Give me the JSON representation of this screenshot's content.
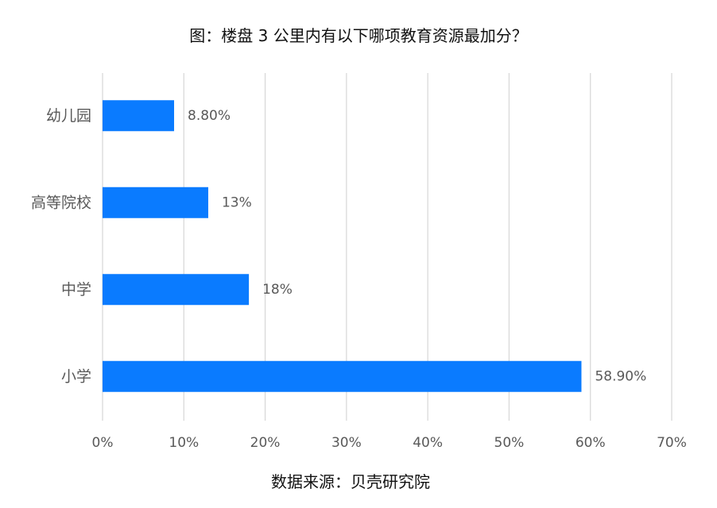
{
  "colors": {
    "bar": "#0a7bff",
    "grid": "#d9d9d9",
    "text": "#595959",
    "title": "#111111"
  },
  "chart_data": {
    "type": "bar",
    "orientation": "horizontal",
    "title": "图：楼盘 3 公里内有以下哪项教育资源最加分？",
    "source": "数据来源：贝壳研究院",
    "categories": [
      "幼儿园",
      "高等院校",
      "中学",
      "小学"
    ],
    "values": [
      8.8,
      13,
      18,
      58.9
    ],
    "data_labels": [
      "8.80%",
      "13%",
      "18%",
      "58.90%"
    ],
    "xlim": [
      0,
      70
    ],
    "x_ticks": [
      0,
      10,
      20,
      30,
      40,
      50,
      60,
      70
    ],
    "x_tick_labels": [
      "0%",
      "10%",
      "20%",
      "30%",
      "40%",
      "50%",
      "60%",
      "70%"
    ],
    "grid": true,
    "legend": "none"
  }
}
